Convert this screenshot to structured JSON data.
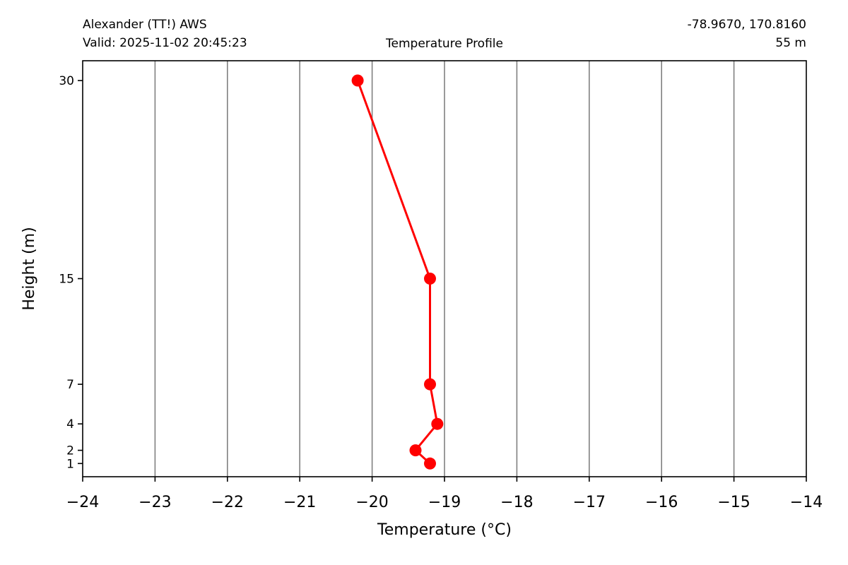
{
  "header": {
    "station": "Alexander (TT!) AWS",
    "valid": "Valid: 2025-11-02 20:45:23",
    "coords": "-78.9670, 170.8160",
    "elevation": "55 m",
    "title": "Temperature Profile"
  },
  "chart_data": {
    "type": "line",
    "title": "Temperature Profile",
    "xlabel": "Temperature ($^\\circ$C)",
    "xlabel_display": "Temperature (°C)",
    "ylabel": "Height (m)",
    "xlim": [
      -24,
      -14
    ],
    "ylim": [
      0,
      31.5
    ],
    "x_ticks": [
      -24,
      -23,
      -22,
      -21,
      -20,
      -19,
      -18,
      -17,
      -16,
      -15,
      -14
    ],
    "x_tick_labels": [
      "−24",
      "−23",
      "−22",
      "−21",
      "−20",
      "−19",
      "−18",
      "−17",
      "−16",
      "−15",
      "−14"
    ],
    "y_ticks": [
      1,
      2,
      4,
      7,
      15,
      30
    ],
    "y_tick_labels": [
      "1",
      "2",
      "4",
      "7",
      "15",
      "30"
    ],
    "grid": "vertical",
    "grid_color": "#808080",
    "series": [
      {
        "color": "#ff0000",
        "marker": "circle",
        "points": [
          {
            "height": 1,
            "temperature": -19.2
          },
          {
            "height": 2,
            "temperature": -19.4
          },
          {
            "height": 4,
            "temperature": -19.1
          },
          {
            "height": 7,
            "temperature": -19.2
          },
          {
            "height": 15,
            "temperature": -19.2
          },
          {
            "height": 30,
            "temperature": -20.2
          }
        ]
      }
    ]
  }
}
